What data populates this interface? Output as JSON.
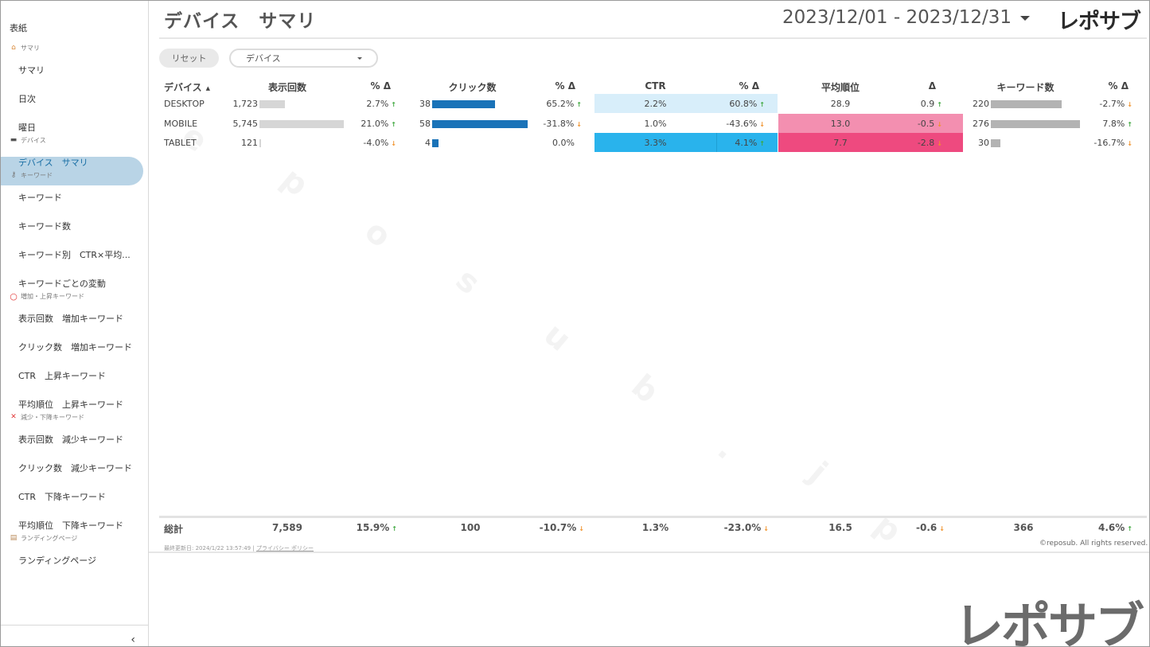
{
  "sidebar": {
    "cover": "表紙",
    "sections": [
      {
        "icon": "house-icon",
        "label": "サマリ",
        "items": [
          "サマリ",
          "日次",
          "曜日"
        ]
      },
      {
        "icon": "laptop-icon",
        "label": "デバイス",
        "items": [
          "デバイス　サマリ"
        ]
      },
      {
        "icon": "key-icon",
        "label": "キーワード",
        "items": [
          "キーワード",
          "キーワード数",
          "キーワード別　CTR×平均...",
          "キーワードごとの変動"
        ]
      },
      {
        "icon": "circle-icon",
        "label": "増加・上昇キーワード",
        "items": [
          "表示回数　増加キーワード",
          "クリック数　増加キーワード",
          "CTR　上昇キーワード",
          "平均順位　上昇キーワード"
        ]
      },
      {
        "icon": "cross-icon",
        "label": "減少・下降キーワード",
        "items": [
          "表示回数　減少キーワード",
          "クリック数　減少キーワード",
          "CTR　下降キーワード",
          "平均順位　下降キーワード"
        ]
      },
      {
        "icon": "document-icon",
        "label": "ランディングページ",
        "items": [
          "ランディングページ"
        ]
      }
    ],
    "collapse": "‹"
  },
  "header": {
    "title": "デバイス　サマリ",
    "date_range": "2023/12/01 - 2023/12/31",
    "brand": "レポサブ"
  },
  "controls": {
    "reset": "リセット",
    "device_filter": "デバイス"
  },
  "table": {
    "headers": [
      "デバイス",
      "表示回数",
      "% Δ",
      "クリック数",
      "% Δ",
      "CTR",
      "% Δ",
      "平均順位",
      "Δ",
      "キーワード数",
      "% Δ"
    ],
    "sort_indicator": "▲",
    "rows": [
      {
        "device": "DESKTOP",
        "impressions": "1,723",
        "impressions_value": 1723,
        "imp_delta": "2.7%",
        "imp_dir": "up",
        "clicks": "38",
        "clicks_value": 38,
        "clk_delta": "65.2%",
        "clk_dir": "up",
        "ctr": "2.2%",
        "ctr_delta": "60.8%",
        "ctr_dir": "up",
        "position": "28.9",
        "pos_delta": "0.9",
        "pos_dir": "up",
        "keywords": "220",
        "keywords_value": 220,
        "kw_delta": "-2.7%",
        "kw_dir": "down"
      },
      {
        "device": "MOBILE",
        "impressions": "5,745",
        "impressions_value": 5745,
        "imp_delta": "21.0%",
        "imp_dir": "up",
        "clicks": "58",
        "clicks_value": 58,
        "clk_delta": "-31.8%",
        "clk_dir": "down",
        "ctr": "1.0%",
        "ctr_delta": "-43.6%",
        "ctr_dir": "down",
        "position": "13.0",
        "pos_delta": "-0.5",
        "pos_dir": "down",
        "keywords": "276",
        "keywords_value": 276,
        "kw_delta": "7.8%",
        "kw_dir": "up"
      },
      {
        "device": "TABLET",
        "impressions": "121",
        "impressions_value": 121,
        "imp_delta": "-4.0%",
        "imp_dir": "down",
        "clicks": "4",
        "clicks_value": 4,
        "clk_delta": "0.0%",
        "clk_dir": "none",
        "ctr": "3.3%",
        "ctr_delta": "4.1%",
        "ctr_dir": "up",
        "position": "7.7",
        "pos_delta": "-2.8",
        "pos_dir": "down",
        "keywords": "30",
        "keywords_value": 30,
        "kw_delta": "-16.7%",
        "kw_dir": "down"
      }
    ],
    "totals": {
      "label": "総計",
      "impressions": "7,589",
      "imp_delta": "15.9%",
      "imp_dir": "up",
      "clicks": "100",
      "clk_delta": "-10.7%",
      "clk_dir": "down",
      "ctr": "1.3%",
      "ctr_delta": "-23.0%",
      "ctr_dir": "down",
      "position": "16.5",
      "pos_delta": "-0.6",
      "pos_dir": "down",
      "keywords": "366",
      "kw_delta": "4.6%",
      "kw_dir": "up"
    }
  },
  "colors": {
    "impressions_bar": "#d6d6d6",
    "clicks_bar": "#1a73b8",
    "keywords_bar": "#b3b3b3",
    "ctr_light": "#d8eefa",
    "ctr_strong": "#29b3ec",
    "pos_mid": "#f38fb0",
    "pos_strong": "#ee4a7f",
    "up": "#3fa83f",
    "down": "#f0922b"
  },
  "footer": {
    "updated": "最終更新日: 2024/1/22 13:57:49",
    "privacy": "プライバシー ポリシー",
    "copyright": "©reposub. All rights reserved.",
    "brand_large": "レポサブ"
  },
  "watermark": [
    "r",
    "e",
    "p",
    "o",
    "s",
    "u",
    "b",
    ".",
    "j",
    "p"
  ]
}
